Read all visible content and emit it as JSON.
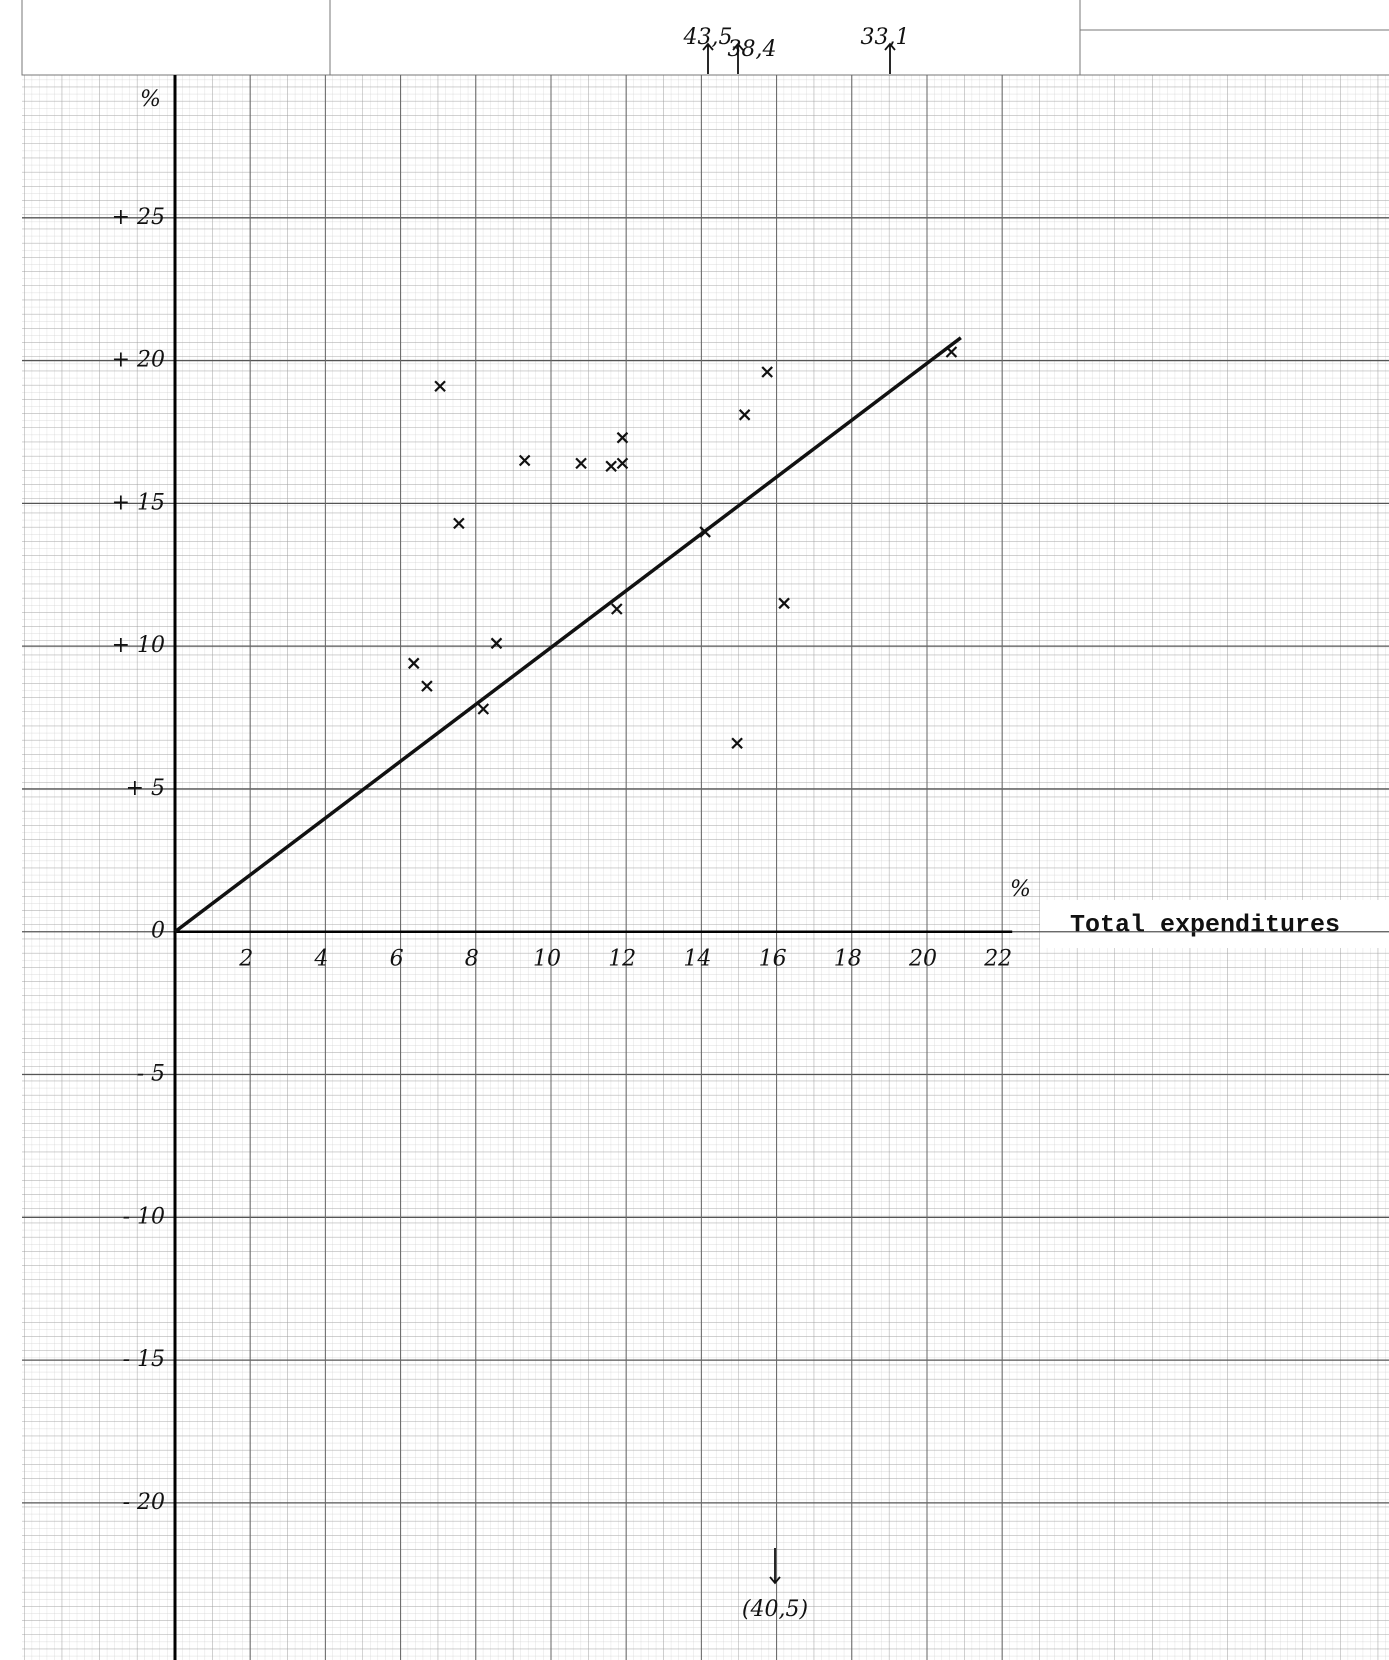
{
  "chart_data": {
    "type": "scatter",
    "y_label": "%",
    "x_label_unit": "%",
    "x_label": "Total expenditures",
    "xlim": [
      0,
      22
    ],
    "ylim": [
      -22,
      30
    ],
    "xticks": [
      2,
      4,
      6,
      8,
      10,
      12,
      14,
      16,
      18,
      20,
      22
    ],
    "yticks": [
      {
        "value": -20,
        "label": "- 20"
      },
      {
        "value": -15,
        "label": "- 15"
      },
      {
        "value": -10,
        "label": "- 10"
      },
      {
        "value": -5,
        "label": "- 5"
      },
      0,
      {
        "value": 5,
        "label": "+ 5"
      },
      {
        "value": 10,
        "label": "+ 10"
      },
      {
        "value": 15,
        "label": "+ 15"
      },
      {
        "value": 20,
        "label": "+ 20"
      },
      {
        "value": 25,
        "label": "+ 25"
      }
    ],
    "color": "#111111",
    "x": [
      6.35,
      6.7,
      7.05,
      7.55,
      8.2,
      8.55,
      9.3,
      10.8,
      11.6,
      11.9,
      11.9,
      11.75,
      14.1,
      14.95,
      15.15,
      15.75,
      16.2,
      20.65
    ],
    "y": [
      9.4,
      8.6,
      19.1,
      14.3,
      7.8,
      10.1,
      16.5,
      16.4,
      16.3,
      16.4,
      17.3,
      11.3,
      14.0,
      6.6,
      18.1,
      19.6,
      11.5,
      20.3
    ],
    "line": {
      "x": [
        0,
        20.9
      ],
      "y": [
        0,
        20.8
      ]
    },
    "annotations": [
      "43,5",
      "38,4",
      "33,1",
      "(40,5)"
    ]
  }
}
